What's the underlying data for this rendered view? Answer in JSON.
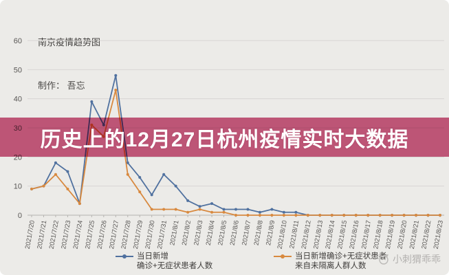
{
  "header": {
    "title": "南京疫情趋势图",
    "credit": "制作： 吾忘"
  },
  "banner": {
    "text": "历史上的12月27日杭州疫情实时大数据",
    "bg_color": "#cc5c82",
    "text_color": "#ffffff"
  },
  "watermark": {
    "text": "小刺猬乖乖",
    "icon": "hedgehog-face-icon",
    "color": "#b3b1af"
  },
  "legend": {
    "items": [
      {
        "lines": [
          "当日新增",
          "确诊+无症状患者人数"
        ],
        "color": "#50719f"
      },
      {
        "lines": [
          "当日新增确诊+无症状患者",
          "来自未隔离人群人数"
        ],
        "color": "#d8893f"
      }
    ]
  },
  "chart_data": {
    "type": "line",
    "title": "南京疫情趋势图",
    "xlabel": "",
    "ylabel": "",
    "ylim": [
      0,
      60
    ],
    "yticks": [
      0,
      10,
      20,
      30,
      40,
      50,
      60
    ],
    "grid": true,
    "legend_position": "bottom",
    "x": [
      "2021/7/20",
      "2021/7/21",
      "2021/7/22",
      "2021/7/23",
      "2021/7/24",
      "2021/7/25",
      "2021/7/26",
      "2021/7/27",
      "2021/7/28",
      "2021/7/29",
      "2021/7/30",
      "2021/7/31",
      "2021/8/1",
      "2021/8/2",
      "2021/8/3",
      "2021/8/4",
      "2021/8/5",
      "2021/8/6",
      "2021/8/7",
      "2021/8/8",
      "2021/8/9",
      "2021/8/10",
      "2021/8/11",
      "2021/8/12",
      "2021/8/13",
      "2021/8/14",
      "2021/8/15",
      "2021/8/16",
      "2021/8/17",
      "2021/8/18",
      "2021/8/19",
      "2021/8/20",
      "2021/8/21",
      "2021/8/22",
      "2021/8/23"
    ],
    "series": [
      {
        "name": "当日新增确诊+无症状患者人数",
        "color": "#50719f",
        "values": [
          9,
          10,
          18,
          15,
          4,
          39,
          31,
          48,
          18,
          13,
          7,
          14,
          10,
          5,
          3,
          4,
          2,
          2,
          2,
          1,
          2,
          1,
          1,
          0,
          0,
          0,
          0,
          0,
          0,
          0,
          0,
          0,
          0,
          0,
          0
        ]
      },
      {
        "name": "当日新增确诊+无症状患者来自未隔离人群人数",
        "color": "#d8893f",
        "values": [
          9,
          10,
          14,
          9,
          4,
          31,
          27,
          43,
          14,
          8,
          2,
          2,
          2,
          1,
          2,
          1,
          1,
          0,
          0,
          0,
          0,
          0,
          0,
          0,
          0,
          0,
          0,
          0,
          0,
          0,
          0,
          0,
          0,
          0,
          0
        ]
      }
    ],
    "colors": {
      "background": "#ecebe8",
      "gridline": "#d8d6d3",
      "axis": "#b5b3b0",
      "tick_label": "#595755"
    }
  }
}
